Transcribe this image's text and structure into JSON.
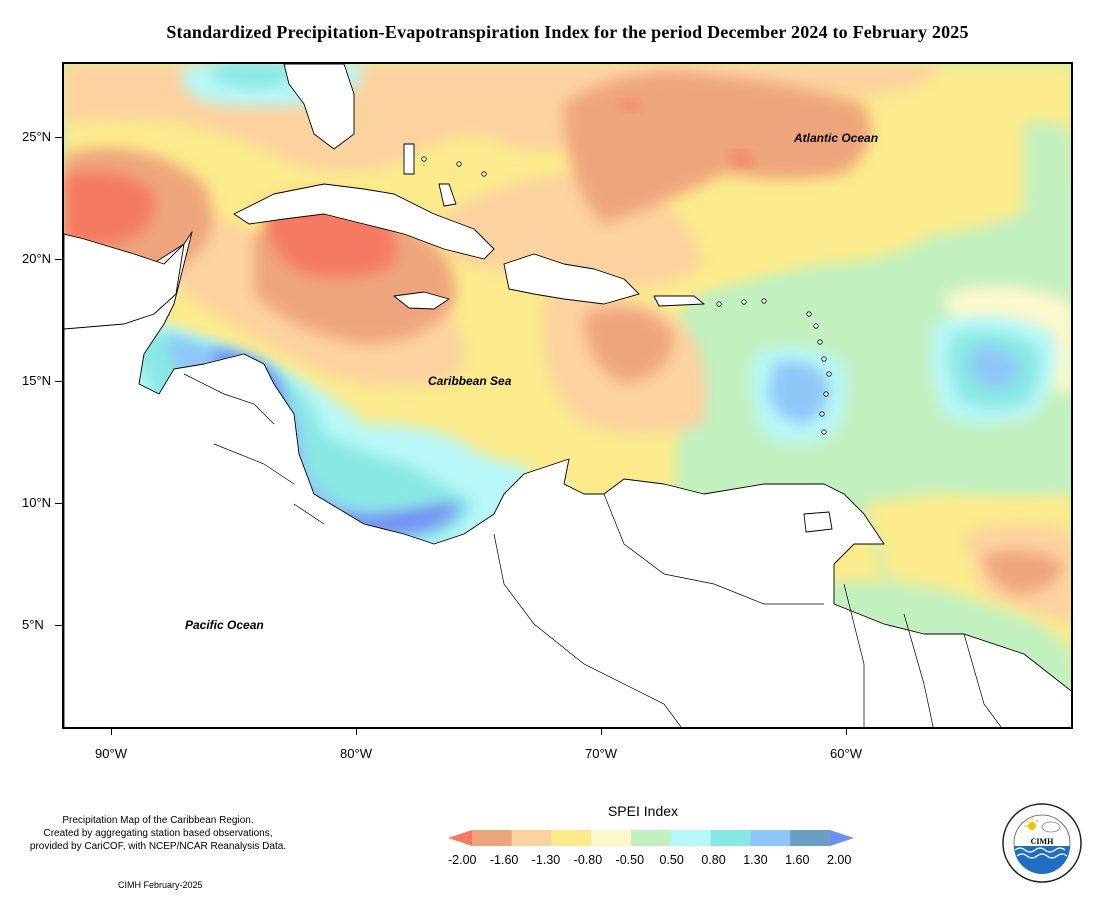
{
  "title": "Standardized Precipitation-Evapotranspiration Index for the period December 2024 to February 2025",
  "map": {
    "latitude_labels": [
      "25°N",
      "20°N",
      "15°N",
      "10°N",
      "5°N"
    ],
    "longitude_labels": [
      "90°W",
      "80°W",
      "70°W",
      "60°W"
    ],
    "regions": {
      "atlantic": "Atlantic Ocean",
      "caribbean": "Caribbean Sea",
      "pacific": "Pacific Ocean"
    }
  },
  "legend": {
    "title": "SPEI Index",
    "ticks": [
      "-2.00",
      "-1.60",
      "-1.30",
      "-0.80",
      "-0.50",
      "0.50",
      "0.80",
      "1.30",
      "1.60",
      "2.00"
    ],
    "colors": [
      "#f47a62",
      "#efa57c",
      "#fcd29f",
      "#fbeb8c",
      "#fdf8cc",
      "#c2f0bf",
      "#b8f7f7",
      "#88e8e4",
      "#8fc6f8",
      "#6a9ec5",
      "#6f8ef0"
    ]
  },
  "footer": {
    "note_lines": [
      "Precipitation Map of the Caribbean Region.",
      "Created by aggregating station based observations,",
      "provided by CariCOF, with NCEP/NCAR Reanalysis Data."
    ],
    "date": "CIMH February-2025"
  },
  "logo": {
    "text": "CIMH",
    "ring_text": "Caribbean Institute for Meteorology and Hydrology",
    "icon": "cimh-logo-icon"
  }
}
